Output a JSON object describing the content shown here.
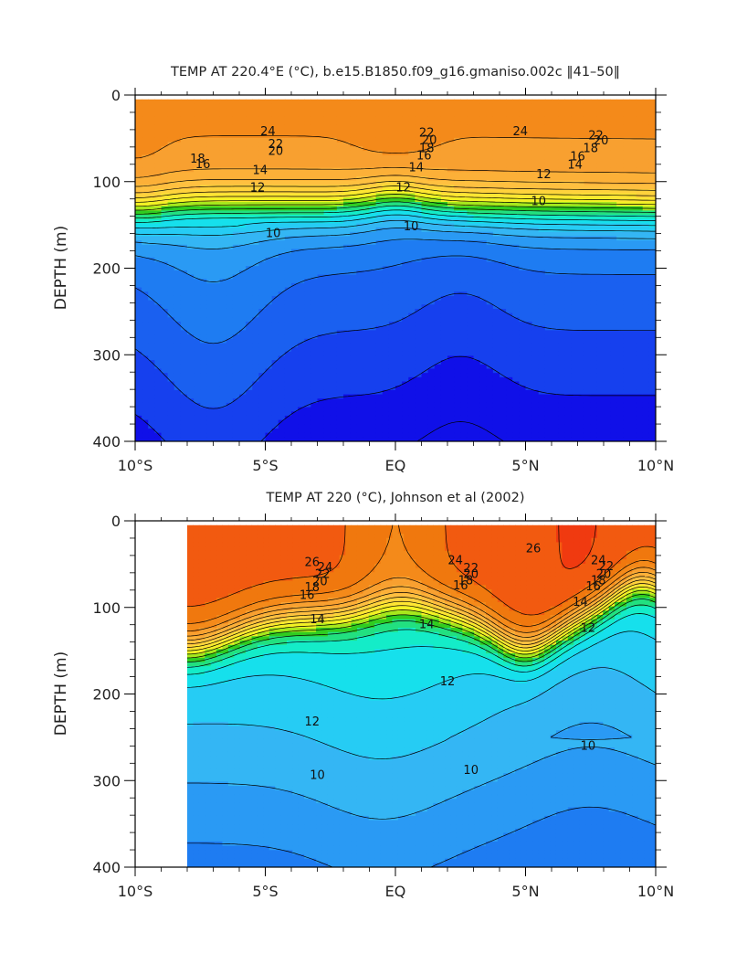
{
  "chart_data": [
    {
      "type": "heatmap",
      "subtype": "filled-contour",
      "title": "TEMP AT 220.4°E (°C), b.e15.B1850.f09_g16.gmaniso.002c ‖41–50‖",
      "xlabel": "",
      "ylabel": "DEPTH (m)",
      "x_ticks": [
        "10°S",
        "5°S",
        "EQ",
        "5°N",
        "10°N"
      ],
      "y_ticks": [
        "0",
        "100",
        "200",
        "300",
        "400"
      ],
      "x_range": [
        -10,
        10
      ],
      "y_range": [
        400,
        0
      ],
      "y_inverted": true,
      "contour_interval": 1,
      "data_x_start": -10,
      "grid": false,
      "contour_labels": [
        {
          "x": -4.9,
          "y": 42,
          "text": "24"
        },
        {
          "x": 4.8,
          "y": 42,
          "text": "24"
        },
        {
          "x": 1.2,
          "y": 44,
          "text": "22"
        },
        {
          "x": -4.6,
          "y": 57,
          "text": "22"
        },
        {
          "x": 7.7,
          "y": 47,
          "text": "22"
        },
        {
          "x": -4.6,
          "y": 65,
          "text": "20"
        },
        {
          "x": 1.3,
          "y": 52,
          "text": "20"
        },
        {
          "x": 7.9,
          "y": 53,
          "text": "20"
        },
        {
          "x": 1.2,
          "y": 62,
          "text": "18"
        },
        {
          "x": -7.6,
          "y": 74,
          "text": "18"
        },
        {
          "x": 7.5,
          "y": 62,
          "text": "18"
        },
        {
          "x": -7.4,
          "y": 80,
          "text": "16"
        },
        {
          "x": 1.1,
          "y": 70,
          "text": "16"
        },
        {
          "x": 7.0,
          "y": 71,
          "text": "16"
        },
        {
          "x": -5.2,
          "y": 87,
          "text": "14"
        },
        {
          "x": 0.8,
          "y": 84,
          "text": "14"
        },
        {
          "x": 6.9,
          "y": 81,
          "text": "14"
        },
        {
          "x": -5.3,
          "y": 107,
          "text": "12"
        },
        {
          "x": 0.3,
          "y": 107,
          "text": "12"
        },
        {
          "x": 5.7,
          "y": 92,
          "text": "12"
        },
        {
          "x": 5.5,
          "y": 123,
          "text": "10"
        },
        {
          "x": -4.7,
          "y": 160,
          "text": "10"
        },
        {
          "x": 0.6,
          "y": 152,
          "text": "10"
        }
      ]
    },
    {
      "type": "heatmap",
      "subtype": "filled-contour",
      "title": "TEMP AT 220 (°C), Johnson et al (2002)",
      "xlabel": "",
      "ylabel": "DEPTH (m)",
      "x_ticks": [
        "10°S",
        "5°S",
        "EQ",
        "5°N",
        "10°N"
      ],
      "y_ticks": [
        "0",
        "100",
        "200",
        "300",
        "400"
      ],
      "x_range": [
        -10,
        10
      ],
      "y_range": [
        400,
        0
      ],
      "y_inverted": true,
      "contour_interval": 1,
      "data_x_start": -8,
      "grid": false,
      "contour_labels": [
        {
          "x": -3.2,
          "y": 48,
          "text": "26"
        },
        {
          "x": 5.3,
          "y": 32,
          "text": "26"
        },
        {
          "x": 2.3,
          "y": 46,
          "text": "24"
        },
        {
          "x": -2.7,
          "y": 54,
          "text": "24"
        },
        {
          "x": 7.8,
          "y": 46,
          "text": "24"
        },
        {
          "x": -2.8,
          "y": 62,
          "text": "22"
        },
        {
          "x": 2.9,
          "y": 55,
          "text": "22"
        },
        {
          "x": 8.1,
          "y": 53,
          "text": "22"
        },
        {
          "x": -2.9,
          "y": 70,
          "text": "20"
        },
        {
          "x": 2.9,
          "y": 62,
          "text": "20"
        },
        {
          "x": 8.0,
          "y": 62,
          "text": "20"
        },
        {
          "x": -3.2,
          "y": 77,
          "text": "18"
        },
        {
          "x": 2.7,
          "y": 69,
          "text": "18"
        },
        {
          "x": 7.8,
          "y": 69,
          "text": "18"
        },
        {
          "x": -3.4,
          "y": 86,
          "text": "16"
        },
        {
          "x": 2.5,
          "y": 75,
          "text": "16"
        },
        {
          "x": 7.6,
          "y": 76,
          "text": "16"
        },
        {
          "x": -3.0,
          "y": 114,
          "text": "14"
        },
        {
          "x": 1.2,
          "y": 120,
          "text": "14"
        },
        {
          "x": 7.1,
          "y": 94,
          "text": "14"
        },
        {
          "x": 2.0,
          "y": 186,
          "text": "12"
        },
        {
          "x": -3.2,
          "y": 232,
          "text": "12"
        },
        {
          "x": 7.4,
          "y": 124,
          "text": "12"
        },
        {
          "x": -3.0,
          "y": 294,
          "text": "10"
        },
        {
          "x": 2.9,
          "y": 288,
          "text": "10"
        },
        {
          "x": 7.4,
          "y": 260,
          "text": "10"
        }
      ]
    }
  ]
}
